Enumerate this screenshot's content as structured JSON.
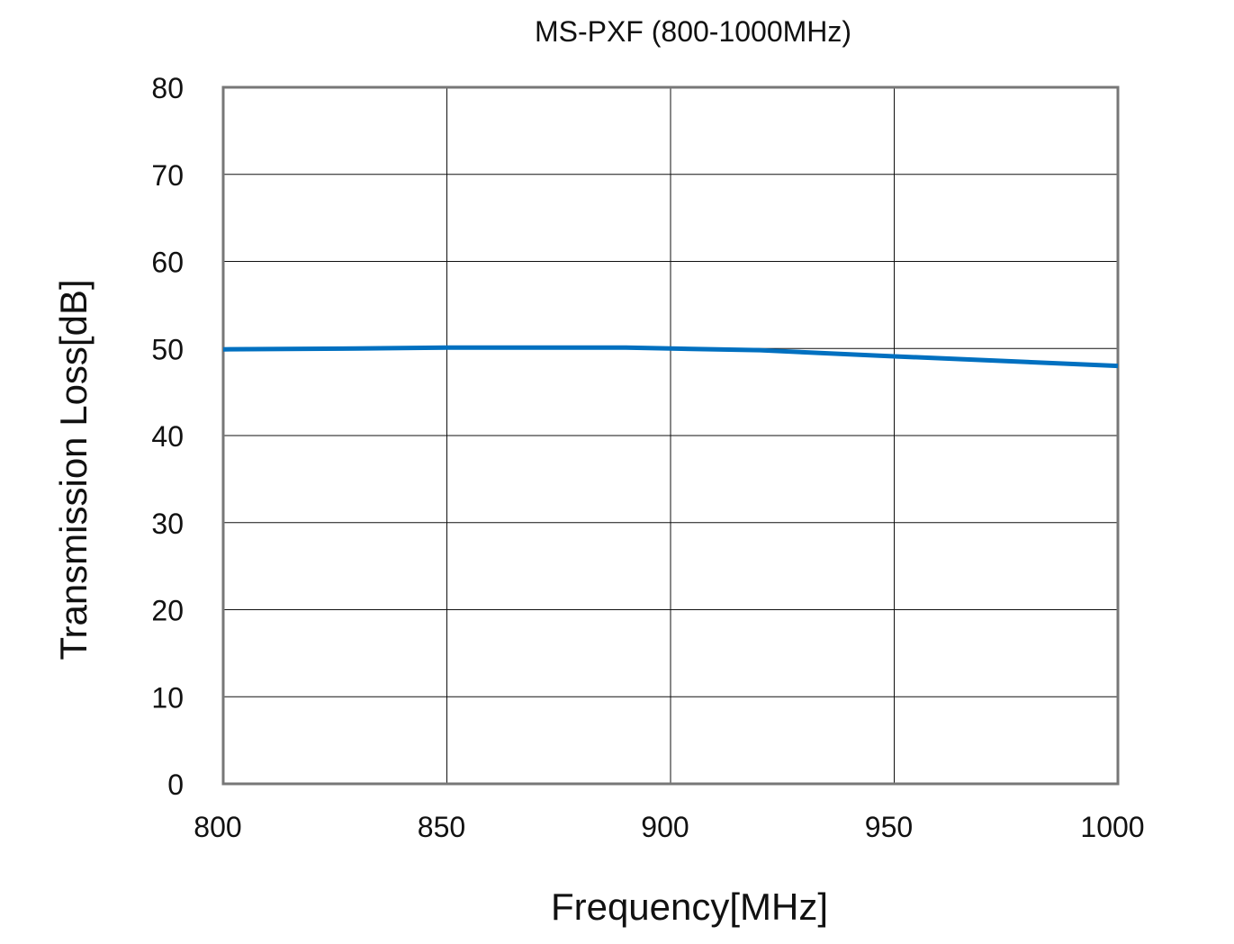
{
  "chart_data": {
    "type": "line",
    "title": "MS-PXF (800-1000MHz)",
    "xlabel": "Frequency[MHz]",
    "ylabel": "Transmission Loss[dB]",
    "xlim": [
      800,
      1000
    ],
    "ylim": [
      0,
      80
    ],
    "xticks": [
      800,
      850,
      900,
      950,
      1000
    ],
    "yticks": [
      0,
      10,
      20,
      30,
      40,
      50,
      60,
      70,
      80
    ],
    "grid": true,
    "series": [
      {
        "color": "#0070C0",
        "x": [
          800,
          830,
          850,
          890,
          900,
          920,
          950,
          1000
        ],
        "y": [
          49.9,
          50.0,
          50.1,
          50.1,
          50.0,
          49.8,
          49.1,
          48.0
        ]
      }
    ]
  }
}
